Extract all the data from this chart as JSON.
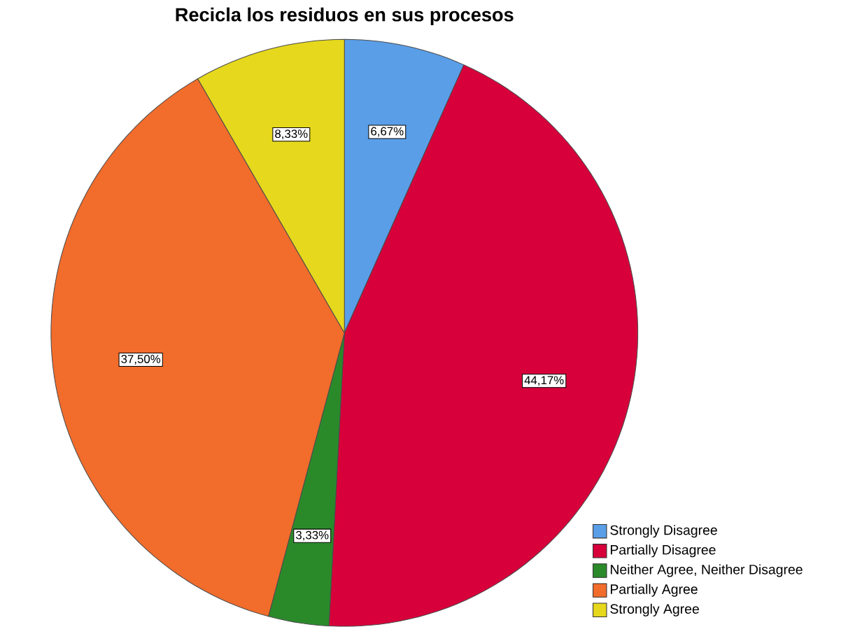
{
  "chart_data": {
    "type": "pie",
    "title": "Recicla los residuos en sus procesos",
    "categories": [
      "Strongly Disagree",
      "Partially Disagree",
      "Neither Agree, Neither Disagree",
      "Partially Agree",
      "Strongly Agree"
    ],
    "values": [
      6.67,
      44.17,
      3.33,
      37.5,
      8.33
    ],
    "colors": [
      "#5a9ee8",
      "#d7003a",
      "#2a8a2a",
      "#f26c2b",
      "#e6d81c"
    ],
    "value_labels": [
      "6,67%",
      "44,17%",
      "3,33%",
      "37,50%",
      "8,33%"
    ],
    "legend": "bottom right"
  }
}
